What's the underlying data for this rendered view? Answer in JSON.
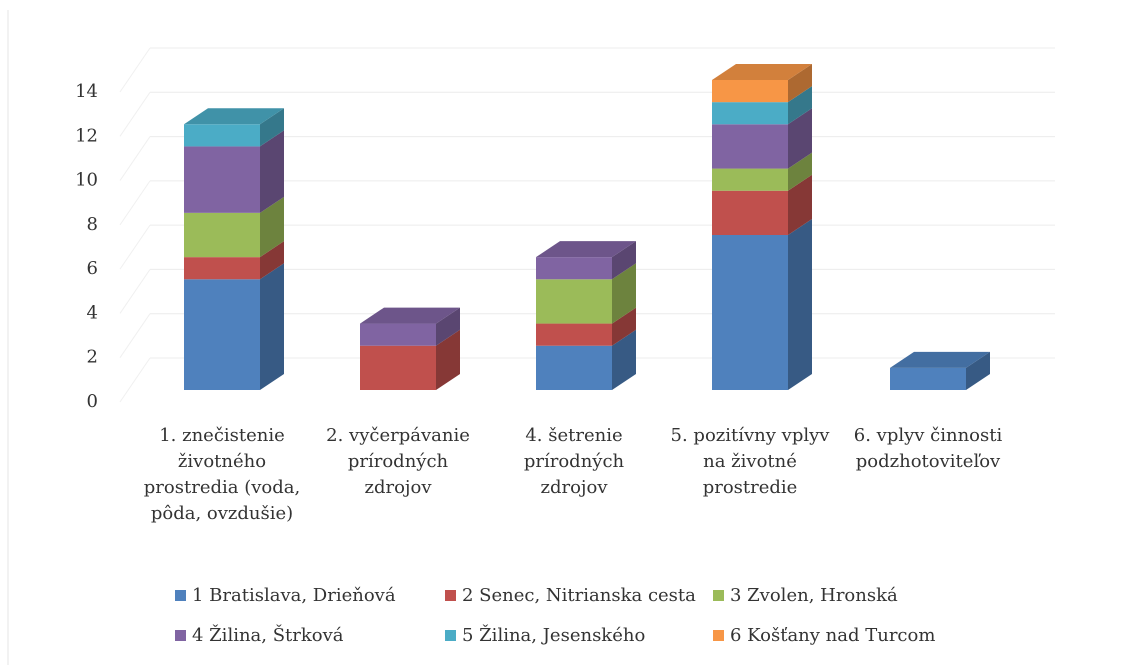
{
  "chart_data": {
    "type": "bar3d_stacked",
    "categories": [
      "1. znečistenie životného prostredia (voda, pôda, ovzdušie)",
      "2. vyčerpávanie prírodných zdrojov",
      "4. šetrenie prírodných zdrojov",
      "5. pozitívny vplyv na životné prostredie",
      "6. vplyv činnosti podzhotoviteľov"
    ],
    "series": [
      {
        "name": "1 Bratislava, Drieňová",
        "color": "#4f81bd",
        "values": [
          5,
          0,
          2,
          7,
          1
        ]
      },
      {
        "name": "2 Senec, Nitrianska cesta",
        "color": "#c0504d",
        "values": [
          1,
          2,
          1,
          2,
          0
        ]
      },
      {
        "name": "3 Zvolen, Hronská",
        "color": "#9bbb59",
        "values": [
          2,
          0,
          2,
          1,
          0
        ]
      },
      {
        "name": "4 Žilina, Štrková",
        "color": "#8064a2",
        "values": [
          3,
          1,
          1,
          2,
          0
        ]
      },
      {
        "name": "5 Žilina, Jesenského",
        "color": "#4bacc6",
        "values": [
          1,
          0,
          0,
          1,
          0
        ]
      },
      {
        "name": "6 Košťany nad Turcom",
        "color": "#f79646",
        "values": [
          0,
          0,
          0,
          1,
          0
        ]
      }
    ],
    "ylim": [
      0,
      14
    ],
    "yticks": [
      0,
      2,
      4,
      6,
      8,
      10,
      12,
      14
    ],
    "grid": true
  }
}
